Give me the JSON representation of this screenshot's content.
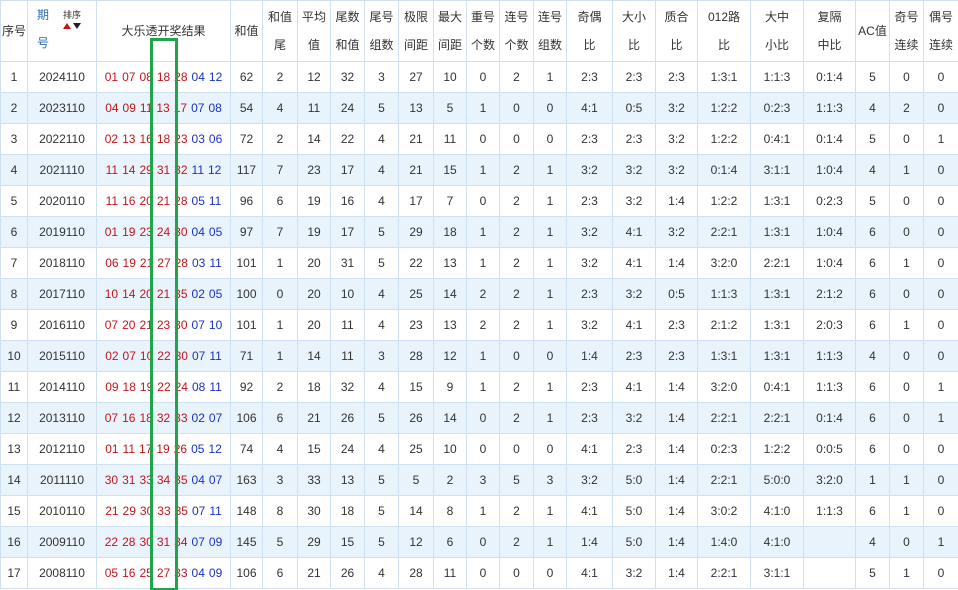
{
  "table": {
    "sort_label": "排序",
    "header": [
      [
        "序号"
      ],
      [
        "期",
        "号"
      ],
      [
        "大乐透开奖结果"
      ],
      [
        "和值"
      ],
      [
        "和值",
        "尾"
      ],
      [
        "平均",
        "值"
      ],
      [
        "尾数",
        "和值"
      ],
      [
        "尾号",
        "组数"
      ],
      [
        "极限",
        "间距"
      ],
      [
        "最大",
        "间距"
      ],
      [
        "重号",
        "个数"
      ],
      [
        "连号",
        "个数"
      ],
      [
        "连号",
        "组数"
      ],
      [
        "奇偶",
        "比"
      ],
      [
        "大小",
        "比"
      ],
      [
        "质合",
        "比"
      ],
      [
        "012路",
        "比"
      ],
      [
        "大中",
        "小比"
      ],
      [
        "复隔",
        "中比"
      ],
      [
        "AC值"
      ],
      [
        "奇号",
        "连续"
      ],
      [
        "偶号",
        "连续"
      ]
    ],
    "rows": [
      {
        "no": 1,
        "issue": "2024110",
        "front": [
          "01",
          "07",
          "08",
          "18",
          "28"
        ],
        "back": [
          "04",
          "12"
        ],
        "cells": [
          62,
          2,
          12,
          32,
          3,
          27,
          10,
          0,
          2,
          1,
          "2:3",
          "2:3",
          "2:3",
          "1:3:1",
          "1:1:3",
          "0:1:4",
          5,
          0,
          0
        ]
      },
      {
        "no": 2,
        "issue": "2023110",
        "front": [
          "04",
          "09",
          "11",
          "13",
          "17"
        ],
        "back": [
          "07",
          "08"
        ],
        "cells": [
          54,
          4,
          11,
          24,
          5,
          13,
          5,
          1,
          0,
          0,
          "4:1",
          "0:5",
          "3:2",
          "1:2:2",
          "0:2:3",
          "1:1:3",
          4,
          2,
          0
        ]
      },
      {
        "no": 3,
        "issue": "2022110",
        "front": [
          "02",
          "13",
          "16",
          "18",
          "23"
        ],
        "back": [
          "03",
          "06"
        ],
        "cells": [
          72,
          2,
          14,
          22,
          4,
          21,
          11,
          0,
          0,
          0,
          "2:3",
          "2:3",
          "3:2",
          "1:2:2",
          "0:4:1",
          "0:1:4",
          5,
          0,
          1
        ]
      },
      {
        "no": 4,
        "issue": "2021110",
        "front": [
          "11",
          "14",
          "29",
          "31",
          "32"
        ],
        "back": [
          "11",
          "12"
        ],
        "cells": [
          117,
          7,
          23,
          17,
          4,
          21,
          15,
          1,
          2,
          1,
          "3:2",
          "3:2",
          "3:2",
          "0:1:4",
          "3:1:1",
          "1:0:4",
          4,
          1,
          0
        ]
      },
      {
        "no": 5,
        "issue": "2020110",
        "front": [
          "11",
          "16",
          "20",
          "21",
          "28"
        ],
        "back": [
          "05",
          "11"
        ],
        "cells": [
          96,
          6,
          19,
          16,
          4,
          17,
          7,
          0,
          2,
          1,
          "2:3",
          "3:2",
          "1:4",
          "1:2:2",
          "1:3:1",
          "0:2:3",
          5,
          0,
          0
        ]
      },
      {
        "no": 6,
        "issue": "2019110",
        "front": [
          "01",
          "19",
          "23",
          "24",
          "30"
        ],
        "back": [
          "04",
          "05"
        ],
        "cells": [
          97,
          7,
          19,
          17,
          5,
          29,
          18,
          1,
          2,
          1,
          "3:2",
          "4:1",
          "3:2",
          "2:2:1",
          "1:3:1",
          "1:0:4",
          6,
          0,
          0
        ]
      },
      {
        "no": 7,
        "issue": "2018110",
        "front": [
          "06",
          "19",
          "21",
          "27",
          "28"
        ],
        "back": [
          "03",
          "11"
        ],
        "cells": [
          101,
          1,
          20,
          31,
          5,
          22,
          13,
          1,
          2,
          1,
          "3:2",
          "4:1",
          "1:4",
          "3:2:0",
          "2:2:1",
          "1:0:4",
          6,
          1,
          0
        ]
      },
      {
        "no": 8,
        "issue": "2017110",
        "front": [
          "10",
          "14",
          "20",
          "21",
          "35"
        ],
        "back": [
          "02",
          "05"
        ],
        "cells": [
          100,
          0,
          20,
          10,
          4,
          25,
          14,
          2,
          2,
          1,
          "2:3",
          "3:2",
          "0:5",
          "1:1:3",
          "1:3:1",
          "2:1:2",
          6,
          0,
          0
        ]
      },
      {
        "no": 9,
        "issue": "2016110",
        "front": [
          "07",
          "20",
          "21",
          "23",
          "30"
        ],
        "back": [
          "07",
          "10"
        ],
        "cells": [
          101,
          1,
          20,
          11,
          4,
          23,
          13,
          2,
          2,
          1,
          "3:2",
          "4:1",
          "2:3",
          "2:1:2",
          "1:3:1",
          "2:0:3",
          6,
          1,
          0
        ]
      },
      {
        "no": 10,
        "issue": "2015110",
        "front": [
          "02",
          "07",
          "10",
          "22",
          "30"
        ],
        "back": [
          "07",
          "11"
        ],
        "cells": [
          71,
          1,
          14,
          11,
          3,
          28,
          12,
          1,
          0,
          0,
          "1:4",
          "2:3",
          "2:3",
          "1:3:1",
          "1:3:1",
          "1:1:3",
          4,
          0,
          0
        ]
      },
      {
        "no": 11,
        "issue": "2014110",
        "front": [
          "09",
          "18",
          "19",
          "22",
          "24"
        ],
        "back": [
          "08",
          "11"
        ],
        "cells": [
          92,
          2,
          18,
          32,
          4,
          15,
          9,
          1,
          2,
          1,
          "2:3",
          "4:1",
          "1:4",
          "3:2:0",
          "0:4:1",
          "1:1:3",
          6,
          0,
          1
        ]
      },
      {
        "no": 12,
        "issue": "2013110",
        "front": [
          "07",
          "16",
          "18",
          "32",
          "33"
        ],
        "back": [
          "02",
          "07"
        ],
        "cells": [
          106,
          6,
          21,
          26,
          5,
          26,
          14,
          0,
          2,
          1,
          "2:3",
          "3:2",
          "1:4",
          "2:2:1",
          "2:2:1",
          "0:1:4",
          6,
          0,
          1
        ]
      },
      {
        "no": 13,
        "issue": "2012110",
        "front": [
          "01",
          "11",
          "17",
          "19",
          "26"
        ],
        "back": [
          "05",
          "12"
        ],
        "cells": [
          74,
          4,
          15,
          24,
          4,
          25,
          10,
          0,
          0,
          0,
          "4:1",
          "2:3",
          "1:4",
          "0:2:3",
          "1:2:2",
          "0:0:5",
          6,
          0,
          0
        ]
      },
      {
        "no": 14,
        "issue": "2011110",
        "front": [
          "30",
          "31",
          "33",
          "34",
          "35"
        ],
        "back": [
          "04",
          "07"
        ],
        "cells": [
          163,
          3,
          33,
          13,
          5,
          5,
          2,
          3,
          5,
          3,
          "3:2",
          "5:0",
          "1:4",
          "2:2:1",
          "5:0:0",
          "3:2:0",
          1,
          1,
          0
        ]
      },
      {
        "no": 15,
        "issue": "2010110",
        "front": [
          "21",
          "29",
          "30",
          "33",
          "35"
        ],
        "back": [
          "07",
          "11"
        ],
        "cells": [
          148,
          8,
          30,
          18,
          5,
          14,
          8,
          1,
          2,
          1,
          "4:1",
          "5:0",
          "1:4",
          "3:0:2",
          "4:1:0",
          "1:1:3",
          6,
          1,
          0
        ]
      },
      {
        "no": 16,
        "issue": "2009110",
        "front": [
          "22",
          "28",
          "30",
          "31",
          "34"
        ],
        "back": [
          "07",
          "09"
        ],
        "cells": [
          145,
          5,
          29,
          15,
          5,
          12,
          6,
          0,
          2,
          1,
          "1:4",
          "5:0",
          "1:4",
          "1:4:0",
          "4:1:0",
          null,
          4,
          0,
          1
        ]
      },
      {
        "no": 17,
        "issue": "2008110",
        "front": [
          "05",
          "16",
          "25",
          "27",
          "33"
        ],
        "back": [
          "04",
          "09"
        ],
        "cells": [
          106,
          6,
          21,
          26,
          4,
          28,
          11,
          0,
          0,
          0,
          "4:1",
          "3:2",
          "1:4",
          "2:2:1",
          "3:1:1",
          null,
          5,
          1,
          0
        ]
      }
    ]
  }
}
